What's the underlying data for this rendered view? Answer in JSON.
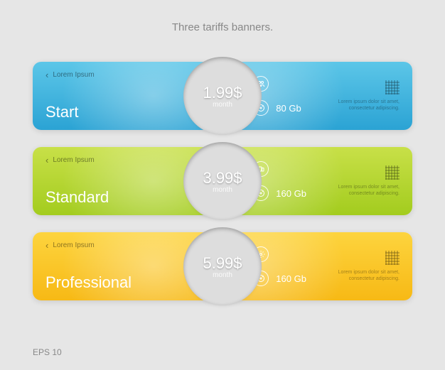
{
  "title": "Three tariffs banners.",
  "eps": "EPS 10",
  "lorem": "Lorem ipsum dolor sit amet, consectetur adipiscing.",
  "back_text": "Lorem Ipsum",
  "period": "month",
  "banners": [
    {
      "plan": "Start",
      "price": "1.99$",
      "storage": "80 Gb",
      "left_bg": "linear-gradient(180deg,#5cc6e8 0%,#2ba3d4 100%)",
      "right_bg": "linear-gradient(180deg,#5cc6e8 0%,#2ba3d4 100%)",
      "circle_bg": "radial-gradient(circle at 35% 30%,#4fc5ed,#0e89c4 70%)",
      "feat_icon": "users"
    },
    {
      "plan": "Standard",
      "price": "3.99$",
      "storage": "160 Gb",
      "left_bg": "linear-gradient(180deg,#c8e048 0%,#a3cc1e 100%)",
      "right_bg": "linear-gradient(180deg,#c8e048 0%,#a3cc1e 100%)",
      "circle_bg": "radial-gradient(circle at 35% 30%,#d6e85a,#93bf0f 70%)",
      "feat_icon": "device"
    },
    {
      "plan": "Professional",
      "price": "5.99$",
      "storage": "160 Gb",
      "left_bg": "linear-gradient(180deg,#fdd43e 0%,#f7b915 100%)",
      "right_bg": "linear-gradient(180deg,#fdd43e 0%,#f7b915 100%)",
      "circle_bg": "radial-gradient(circle at 35% 30%,#ff9a3c,#e8560a 70%)",
      "feat_icon": "gear"
    }
  ]
}
